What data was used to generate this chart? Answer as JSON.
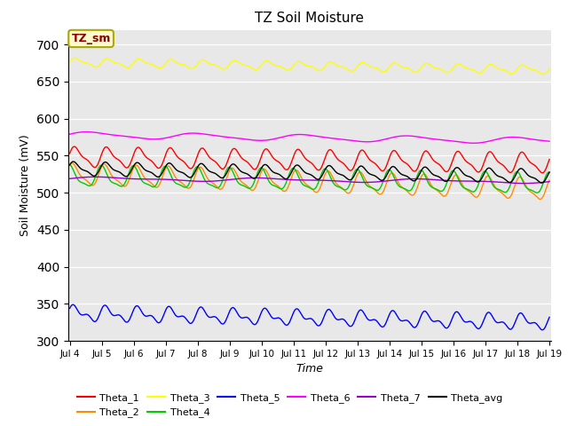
{
  "title": "TZ Soil Moisture",
  "xlabel": "Time",
  "ylabel": "Soil Moisture (mV)",
  "annotation_text": "TZ_sm",
  "annotation_color": "#8B0000",
  "annotation_bg": "#FFFACD",
  "bg_color": "#E8E8E8",
  "ylim": [
    300,
    720
  ],
  "yticks": [
    300,
    350,
    400,
    450,
    500,
    550,
    600,
    650,
    700
  ],
  "x_start_day": 4,
  "x_end_day": 19,
  "n_points": 1500,
  "series": {
    "Theta_1": {
      "color": "#FF0000",
      "base": 548,
      "amp": 12,
      "freq": 1.0,
      "amp2": 4,
      "freq2": 2.0,
      "trend": -8,
      "phase": 0.3
    },
    "Theta_2": {
      "color": "#FF8C00",
      "base": 524,
      "amp": 13,
      "freq": 1.0,
      "amp2": 4,
      "freq2": 2.0,
      "trend": -20,
      "phase": 0.8
    },
    "Theta_3": {
      "color": "#FFFF00",
      "base": 676,
      "amp": 5,
      "freq": 1.0,
      "amp2": 2,
      "freq2": 2.0,
      "trend": -10,
      "phase": 0.1
    },
    "Theta_4": {
      "color": "#00CC00",
      "base": 521,
      "amp": 13,
      "freq": 1.0,
      "amp2": 4,
      "freq2": 2.0,
      "trend": -10,
      "phase": 1.5
    },
    "Theta_5": {
      "color": "#0000FF",
      "base": 337,
      "amp": 8,
      "freq": 1.0,
      "amp2": 5,
      "freq2": 2.0,
      "trend": -12,
      "phase": 0.5
    },
    "Theta_6": {
      "color": "#FF00FF",
      "base": 578,
      "amp": 4,
      "freq": 0.3,
      "amp2": 1,
      "freq2": 0.6,
      "trend": -8,
      "phase": 0.2
    },
    "Theta_7": {
      "color": "#9900CC",
      "base": 519,
      "amp": 2,
      "freq": 0.2,
      "amp2": 1,
      "freq2": 0.4,
      "trend": -4,
      "phase": 0.0
    },
    "Theta_avg": {
      "color": "#000000",
      "base": 532,
      "amp": 8,
      "freq": 1.0,
      "amp2": 3,
      "freq2": 2.0,
      "trend": -10,
      "phase": 0.5
    }
  },
  "legend_order": [
    "Theta_1",
    "Theta_2",
    "Theta_3",
    "Theta_4",
    "Theta_5",
    "Theta_6",
    "Theta_7",
    "Theta_avg"
  ],
  "xtick_labels": [
    "Jul 4",
    "Jul 5",
    "Jul 6",
    "Jul 7",
    "Jul 8",
    "Jul 9",
    "Jul 10",
    "Jul 11",
    "Jul 12",
    "Jul 13",
    "Jul 14",
    "Jul 15",
    "Jul 16",
    "Jul 17",
    "Jul 18",
    "Jul 19"
  ],
  "xtick_positions": [
    4,
    5,
    6,
    7,
    8,
    9,
    10,
    11,
    12,
    13,
    14,
    15,
    16,
    17,
    18,
    19
  ]
}
